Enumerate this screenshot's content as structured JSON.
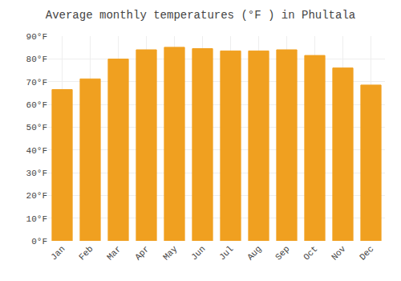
{
  "chart_data": {
    "type": "bar",
    "title": "Average monthly temperatures (°F ) in Phultala",
    "categories": [
      "Jan",
      "Feb",
      "Mar",
      "Apr",
      "May",
      "Jun",
      "Jul",
      "Aug",
      "Sep",
      "Oct",
      "Nov",
      "Dec"
    ],
    "values": [
      66.5,
      71.2,
      79.9,
      84.0,
      85.1,
      84.5,
      83.5,
      83.5,
      84.0,
      81.5,
      76.0,
      68.5
    ],
    "color": "#F0A020",
    "ylim": [
      0,
      90
    ],
    "yticks": [
      {
        "value": 0,
        "label": "0°F"
      },
      {
        "value": 10,
        "label": "10°F"
      },
      {
        "value": 20,
        "label": "20°F"
      },
      {
        "value": 30,
        "label": "30°F"
      },
      {
        "value": 40,
        "label": "40°F"
      },
      {
        "value": 50,
        "label": "50°F"
      },
      {
        "value": 60,
        "label": "60°F"
      },
      {
        "value": 70,
        "label": "70°F"
      },
      {
        "value": 80,
        "label": "80°F"
      },
      {
        "value": 90,
        "label": "90°F"
      }
    ],
    "grid": true
  }
}
